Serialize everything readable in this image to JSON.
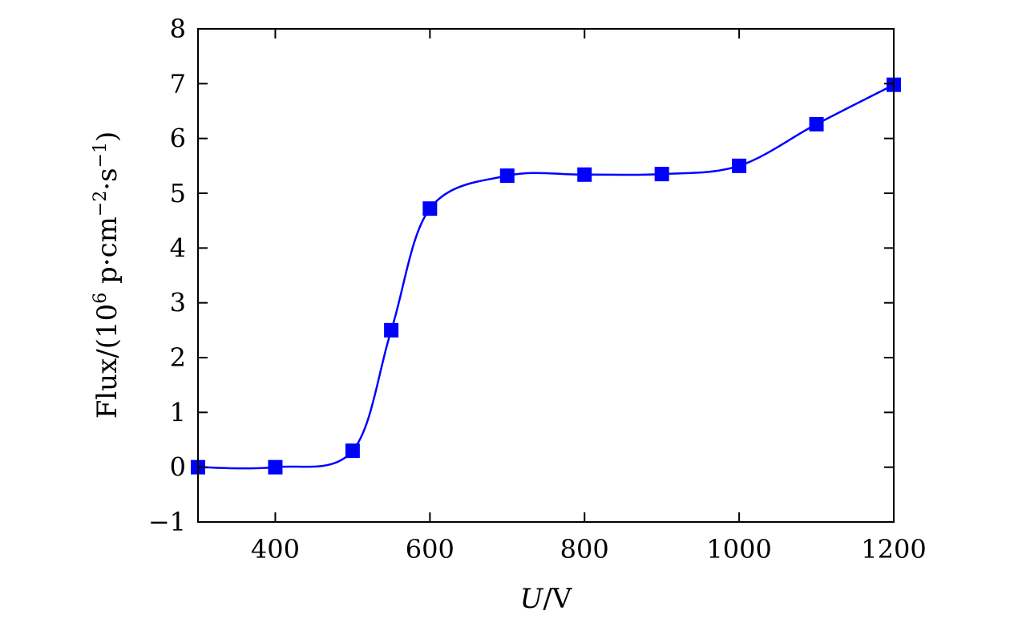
{
  "chart_data": {
    "type": "line",
    "x": [
      300,
      400,
      500,
      550,
      600,
      700,
      800,
      900,
      1000,
      1100,
      1200
    ],
    "series": [
      {
        "values": [
          0,
          0,
          0.3,
          2.5,
          4.72,
          5.32,
          5.34,
          5.35,
          5.5,
          6.26,
          6.98
        ],
        "color": "#0000ff",
        "marker": "square",
        "smooth": true
      }
    ],
    "xlabel": "U/V",
    "xlabel_italic": "U",
    "xlabel_rest": "/V",
    "ylabel": "Flux/(10^6 p·cm^−2·s^−1)",
    "ylabel_parts": {
      "a": "Flux/(10",
      "exp1": "6",
      "b": " p·cm",
      "exp2": "−2",
      "c": "·s",
      "exp3": "−1",
      "d": ")"
    },
    "xlim": [
      300,
      1200
    ],
    "ylim": [
      -1,
      8
    ],
    "xticks": [
      400,
      600,
      800,
      1000,
      1200
    ],
    "xtick_labels": [
      "400",
      "600",
      "800",
      "1000",
      "1200"
    ],
    "yticks": [
      -1,
      0,
      1,
      2,
      3,
      4,
      5,
      6,
      7,
      8
    ],
    "ytick_labels": [
      "−1",
      "0",
      "1",
      "2",
      "3",
      "4",
      "5",
      "6",
      "7",
      "8"
    ],
    "grid": false,
    "legend": "none"
  }
}
